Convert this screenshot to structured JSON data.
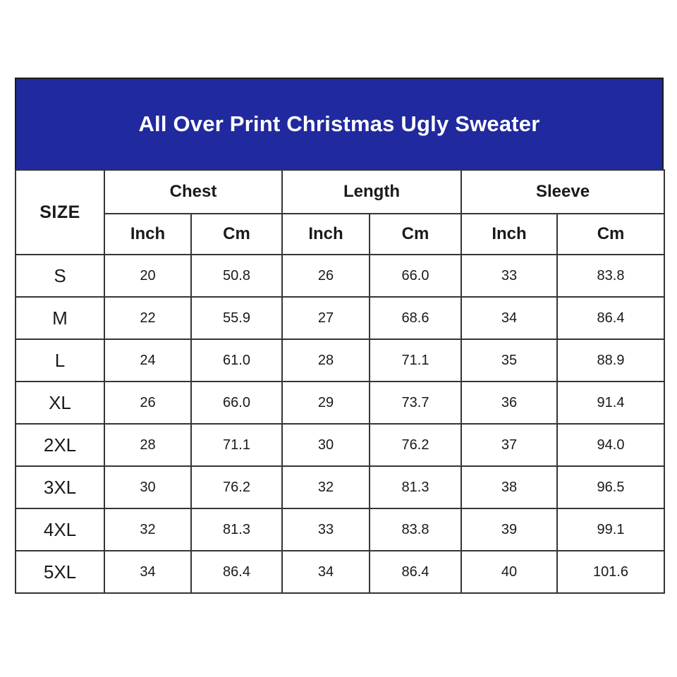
{
  "title": "All Over Print Christmas Ugly Sweater",
  "colors": {
    "banner_bg": "#202a9e",
    "banner_text": "#ffffff",
    "header_bg": "#d8d8d8",
    "border": "#353535",
    "cell_bg": "#ffffff"
  },
  "table": {
    "size_label": "SIZE",
    "groups": [
      {
        "label": "Chest"
      },
      {
        "label": "Length"
      },
      {
        "label": "Sleeve"
      }
    ],
    "unit_labels": [
      "Inch",
      "Cm",
      "Inch",
      "Cm",
      "Inch",
      "Cm"
    ],
    "rows": [
      {
        "size": "S",
        "values": [
          "20",
          "50.8",
          "26",
          "66.0",
          "33",
          "83.8"
        ]
      },
      {
        "size": "M",
        "values": [
          "22",
          "55.9",
          "27",
          "68.6",
          "34",
          "86.4"
        ]
      },
      {
        "size": "L",
        "values": [
          "24",
          "61.0",
          "28",
          "71.1",
          "35",
          "88.9"
        ]
      },
      {
        "size": "XL",
        "values": [
          "26",
          "66.0",
          "29",
          "73.7",
          "36",
          "91.4"
        ]
      },
      {
        "size": "2XL",
        "values": [
          "28",
          "71.1",
          "30",
          "76.2",
          "37",
          "94.0"
        ]
      },
      {
        "size": "3XL",
        "values": [
          "30",
          "76.2",
          "32",
          "81.3",
          "38",
          "96.5"
        ]
      },
      {
        "size": "4XL",
        "values": [
          "32",
          "81.3",
          "33",
          "83.8",
          "39",
          "99.1"
        ]
      },
      {
        "size": "5XL",
        "values": [
          "34",
          "86.4",
          "34",
          "86.4",
          "40",
          "101.6"
        ]
      }
    ]
  },
  "chart_data": {
    "type": "table",
    "title": "All Over Print Christmas Ugly Sweater",
    "columns": [
      "SIZE",
      "Chest Inch",
      "Chest Cm",
      "Length Inch",
      "Length Cm",
      "Sleeve Inch",
      "Sleeve Cm"
    ],
    "rows": [
      [
        "S",
        20,
        50.8,
        26,
        66.0,
        33,
        83.8
      ],
      [
        "M",
        22,
        55.9,
        27,
        68.6,
        34,
        86.4
      ],
      [
        "L",
        24,
        61.0,
        28,
        71.1,
        35,
        88.9
      ],
      [
        "XL",
        26,
        66.0,
        29,
        73.7,
        36,
        91.4
      ],
      [
        "2XL",
        28,
        71.1,
        30,
        76.2,
        37,
        94.0
      ],
      [
        "3XL",
        30,
        76.2,
        32,
        81.3,
        38,
        96.5
      ],
      [
        "4XL",
        32,
        81.3,
        33,
        83.8,
        39,
        99.1
      ],
      [
        "5XL",
        34,
        86.4,
        34,
        86.4,
        40,
        101.6
      ]
    ]
  }
}
